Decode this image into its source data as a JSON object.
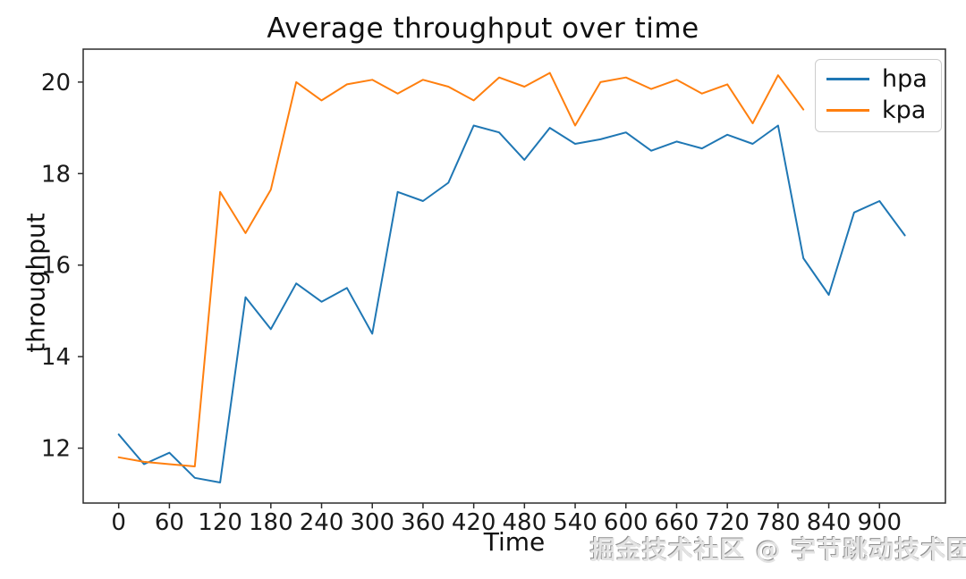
{
  "title": "Average throughput over time",
  "watermark": "掘金技术社区 @ 字节跳动技术团队",
  "chart_data": {
    "type": "line",
    "title": "Average throughput over time",
    "xlabel": "Time",
    "ylabel": "throughput",
    "xlim": [
      -42,
      978
    ],
    "ylim": [
      10.8,
      20.72
    ],
    "xticks": [
      0,
      60,
      120,
      180,
      240,
      300,
      360,
      420,
      480,
      540,
      600,
      660,
      720,
      780,
      840,
      900
    ],
    "yticks": [
      12,
      14,
      16,
      18,
      20
    ],
    "grid": false,
    "legend_position": "upper right",
    "x_step": 30,
    "series": [
      {
        "name": "hpa",
        "color": "#1f77b4",
        "x_start": 0,
        "values": [
          12.3,
          11.65,
          11.9,
          11.35,
          11.25,
          15.3,
          14.6,
          15.6,
          15.2,
          15.5,
          14.5,
          17.6,
          17.4,
          17.8,
          19.05,
          18.9,
          18.3,
          19.0,
          18.65,
          18.75,
          18.9,
          18.5,
          18.7,
          18.55,
          18.85,
          18.65,
          19.05,
          16.15,
          15.35,
          17.15,
          17.4,
          16.65
        ]
      },
      {
        "name": "kpa",
        "color": "#ff7f0e",
        "x_start": 0,
        "values": [
          11.8,
          11.7,
          11.65,
          11.6,
          17.6,
          16.7,
          17.65,
          20.0,
          19.6,
          19.95,
          20.05,
          19.75,
          20.05,
          19.9,
          19.6,
          20.1,
          19.9,
          20.2,
          19.05,
          20.0,
          20.1,
          19.85,
          20.05,
          19.75,
          19.95,
          19.1,
          20.15,
          19.4
        ]
      }
    ]
  },
  "colors": {
    "spine": "#2b2b2b",
    "tick_label": "#1a1a1a"
  }
}
